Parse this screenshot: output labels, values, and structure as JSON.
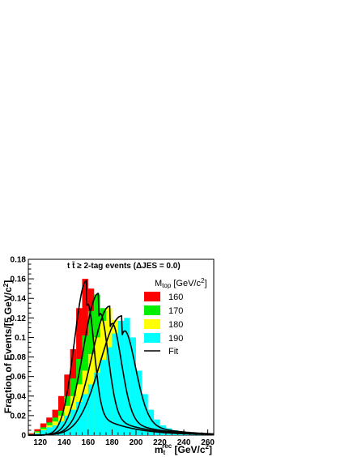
{
  "chart_data": {
    "type": "bar",
    "title": "t t̄ ≥ 2-tag events (ΔJES = 0.0)",
    "title_parts": {
      "process": "tt̄",
      "cut": "≥  2-tag events (",
      "delta": "Δ",
      "syst": "JES =  0.0)"
    },
    "xlabel": "m_t^rec [GeV/c^2]",
    "xlabel_parts": {
      "main": "m",
      "sub": "t",
      "sup": "rec",
      "unit": " [GeV/c",
      "unit_sup": "2",
      "unit_close": "]"
    },
    "ylabel": "Fraction of Events/[5 GeV/c^2]",
    "ylabel_parts": {
      "main": "Fraction of Events/[5 GeV/c",
      "sup": "2",
      "close": "]"
    },
    "xlim": [
      110,
      265
    ],
    "ylim": [
      0,
      0.18
    ],
    "xticks": [
      120,
      140,
      160,
      180,
      200,
      220,
      240,
      260
    ],
    "yticks": [
      0,
      0.02,
      0.04,
      0.06,
      0.08,
      0.1,
      0.12,
      0.14,
      0.16,
      0.18
    ],
    "ytick_labels": [
      "0",
      "0.02",
      "0.04",
      "0.06",
      "0.08",
      "0.1",
      "0.12",
      "0.14",
      "0.16",
      "0.18"
    ],
    "bin_width": 5,
    "bin_edges_start": 110,
    "legend": {
      "title": "M_top [GeV/c^2]",
      "title_parts": {
        "main": "M",
        "sub": "top",
        "unit": " [GeV/c",
        "unit_sup": "2",
        "close": "]"
      },
      "placement": "top-right",
      "fit_label": "Fit"
    },
    "series": [
      {
        "name": "160",
        "color": "#ff0000",
        "values": [
          0.002,
          0.006,
          0.012,
          0.018,
          0.026,
          0.04,
          0.062,
          0.088,
          0.13,
          0.16,
          0.15,
          0.1,
          0.06,
          0.038,
          0.024,
          0.016,
          0.01,
          0.007,
          0.005,
          0.003,
          0.002,
          0.002,
          0.001,
          0.001,
          0.001,
          0.001,
          0,
          0,
          0,
          0,
          0
        ]
      },
      {
        "name": "170",
        "color": "#00ee00",
        "values": [
          0.001,
          0.004,
          0.008,
          0.013,
          0.018,
          0.025,
          0.04,
          0.058,
          0.078,
          0.102,
          0.127,
          0.144,
          0.13,
          0.092,
          0.056,
          0.034,
          0.022,
          0.014,
          0.01,
          0.007,
          0.005,
          0.003,
          0.002,
          0.002,
          0.001,
          0.001,
          0.001,
          0,
          0,
          0,
          0
        ]
      },
      {
        "name": "180",
        "color": "#ffff00",
        "values": [
          0.001,
          0.003,
          0.006,
          0.01,
          0.014,
          0.02,
          0.03,
          0.04,
          0.052,
          0.066,
          0.083,
          0.1,
          0.117,
          0.13,
          0.118,
          0.086,
          0.054,
          0.034,
          0.022,
          0.014,
          0.01,
          0.007,
          0.005,
          0.003,
          0.002,
          0.002,
          0.001,
          0.001,
          0,
          0,
          0
        ]
      },
      {
        "name": "190",
        "color": "#00ffff",
        "values": [
          0.001,
          0.002,
          0.005,
          0.008,
          0.01,
          0.014,
          0.02,
          0.026,
          0.034,
          0.042,
          0.052,
          0.064,
          0.077,
          0.09,
          0.104,
          0.117,
          0.12,
          0.1,
          0.066,
          0.042,
          0.026,
          0.016,
          0.01,
          0.007,
          0.005,
          0.004,
          0.003,
          0.002,
          0.002,
          0.001,
          0.001
        ]
      }
    ],
    "fits": [
      {
        "name": "160",
        "peak_x": 158.5,
        "peak_y": 0.158,
        "sigma_left": 10,
        "tail_right": 15
      },
      {
        "name": "170",
        "peak_x": 168.5,
        "peak_y": 0.145,
        "sigma_left": 12.5,
        "tail_right": 15
      },
      {
        "name": "180",
        "peak_x": 178,
        "peak_y": 0.132,
        "sigma_left": 15,
        "tail_right": 15
      },
      {
        "name": "190",
        "peak_x": 188,
        "peak_y": 0.122,
        "sigma_left": 18,
        "tail_right": 15
      }
    ]
  }
}
